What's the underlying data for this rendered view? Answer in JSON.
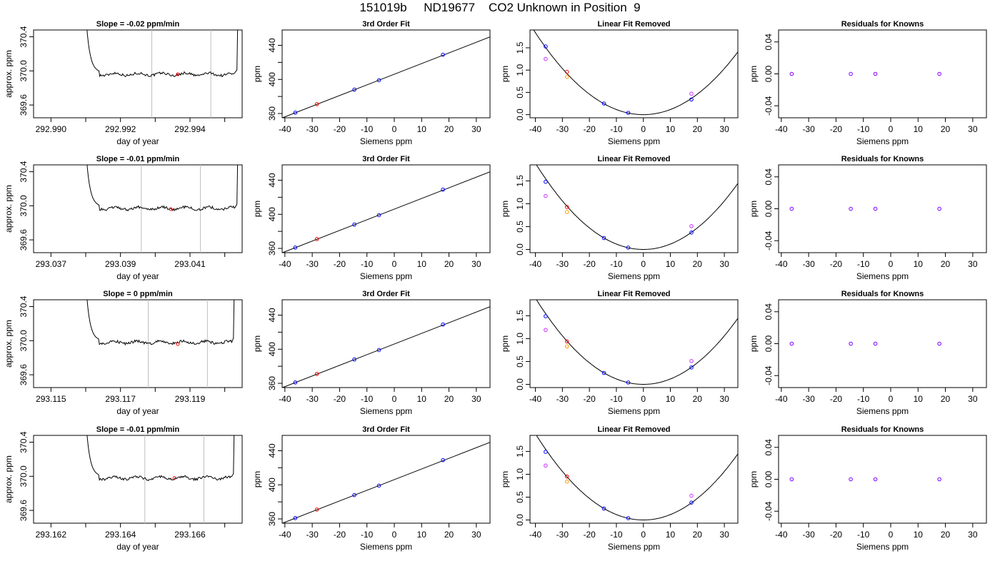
{
  "page_title": "151019b     ND19677    CO2 Unknown in Position  9",
  "colors": {
    "trace": "#000000",
    "window_lines": "#bfbfbf",
    "unknown_point": "#ff0000",
    "known_point": "#0000ff",
    "first_order_point": "#cc33ff",
    "second_order_point": "#ff9900",
    "residual_point": "#8000ff"
  },
  "chart_data": [
    {
      "type": "line",
      "row": 0,
      "title": "Slope =  -0.02  ppm/min",
      "xlabel": "day of year",
      "ylabel": "approx. ppm",
      "xlim": [
        292.9895,
        292.9955
      ],
      "ylim": [
        369.45,
        370.48
      ],
      "xticks": [
        {
          "v": 292.99,
          "l": "292.990"
        },
        {
          "v": 292.992,
          "l": "292.992"
        },
        {
          "v": 292.994,
          "l": "292.994"
        }
      ],
      "xminor": [
        292.991,
        292.993,
        292.995
      ],
      "yticks": [
        {
          "v": 369.6,
          "l": "369.6"
        },
        {
          "v": 370.0,
          "l": "370.0"
        },
        {
          "v": 370.4,
          "l": "370.4"
        }
      ],
      "level": 369.96,
      "x_start": 292.991,
      "x_end": 292.9953,
      "window": [
        292.9929,
        292.9946
      ],
      "point": [
        292.99365,
        369.96
      ]
    },
    {
      "type": "line",
      "chart": "scatter+fit",
      "row": 0,
      "title": "3rd Order Fit",
      "xlabel": "Siemens ppm",
      "ylabel": "ppm",
      "xlim": [
        -41,
        35
      ],
      "ylim": [
        355,
        458
      ],
      "xticks": [
        -40,
        -30,
        -20,
        -10,
        0,
        10,
        20,
        30
      ],
      "yticks": [
        360,
        400,
        440
      ],
      "yminor": [
        380,
        420
      ],
      "fit": {
        "slope": 1.25,
        "intercept": 406.1
      },
      "points": [
        {
          "x": -36.2,
          "y": 361
        },
        {
          "x": -28.3,
          "y": 371
        },
        {
          "x": -14.6,
          "y": 388
        },
        {
          "x": -5.6,
          "y": 399
        },
        {
          "x": 17.8,
          "y": 429
        }
      ]
    },
    {
      "type": "line",
      "chart": "scatter+curve",
      "row": 0,
      "title": "Linear Fit Removed",
      "xlabel": "Siemens ppm",
      "ylabel": "ppm",
      "xlim": [
        -42,
        35
      ],
      "ylim": [
        -0.07,
        1.9
      ],
      "xticks": [
        -40,
        -30,
        -20,
        -10,
        0,
        10,
        20,
        30
      ],
      "yticks": [
        0.0,
        0.5,
        1.0,
        1.5
      ],
      "curve": {
        "a": 0.00115,
        "b": 0.0,
        "c": 0.0
      },
      "points": [
        {
          "x": -36.2,
          "y": 1.53
        },
        {
          "x": -14.6,
          "y": 0.25
        },
        {
          "x": -5.6,
          "y": 0.04
        },
        {
          "x": 17.8,
          "y": 0.34
        }
      ],
      "unknown": {
        "x": -28.3,
        "y": 0.96
      },
      "first_order": [
        {
          "x": -36.2,
          "y": 1.25
        },
        {
          "x": 17.8,
          "y": 0.47
        }
      ],
      "second_order": [
        {
          "x": -28.3,
          "y": 0.85
        }
      ]
    },
    {
      "type": "scatter",
      "row": 0,
      "title": "Residuals for Knowns",
      "xlabel": "Siemens ppm",
      "ylabel": "ppm",
      "xlim": [
        -41,
        35
      ],
      "ylim": [
        -0.055,
        0.055
      ],
      "xticks": [
        -40,
        -30,
        -20,
        -10,
        0,
        10,
        20,
        30
      ],
      "yticks": [
        {
          "v": -0.04,
          "l": "-0.04"
        },
        {
          "v": 0.0,
          "l": "0.00"
        },
        {
          "v": 0.04,
          "l": "0.04"
        }
      ],
      "points": [
        {
          "x": -36.2,
          "y": 0
        },
        {
          "x": -14.6,
          "y": 0
        },
        {
          "x": -5.6,
          "y": 0
        },
        {
          "x": 17.8,
          "y": 0
        }
      ]
    },
    {
      "type": "line",
      "row": 1,
      "title": "Slope =  -0.01  ppm/min",
      "xlabel": "day of year",
      "ylabel": "approx. ppm",
      "xlim": [
        293.0365,
        293.0425
      ],
      "ylim": [
        369.45,
        370.48
      ],
      "xticks": [
        {
          "v": 293.037,
          "l": "293.037"
        },
        {
          "v": 293.039,
          "l": "293.039"
        },
        {
          "v": 293.041,
          "l": "293.041"
        }
      ],
      "xminor": [
        293.038,
        293.04,
        293.042
      ],
      "yticks": [
        {
          "v": 369.6,
          "l": "369.6"
        },
        {
          "v": 370.0,
          "l": "370.0"
        },
        {
          "v": 370.4,
          "l": "370.4"
        }
      ],
      "level": 369.97,
      "x_start": 293.038,
      "x_end": 293.0423,
      "window": [
        293.0396,
        293.0413
      ],
      "point": [
        293.04045,
        369.96
      ]
    },
    {
      "type": "line",
      "chart": "scatter+fit",
      "row": 1,
      "title": "3rd Order Fit",
      "xlabel": "Siemens ppm",
      "ylabel": "ppm",
      "xlim": [
        -41,
        35
      ],
      "ylim": [
        355,
        458
      ],
      "xticks": [
        -40,
        -30,
        -20,
        -10,
        0,
        10,
        20,
        30
      ],
      "yticks": [
        360,
        400,
        440
      ],
      "yminor": [
        380,
        420
      ],
      "fit": {
        "slope": 1.25,
        "intercept": 406.1
      },
      "points": [
        {
          "x": -36.2,
          "y": 361
        },
        {
          "x": -28.3,
          "y": 371
        },
        {
          "x": -14.6,
          "y": 388
        },
        {
          "x": -5.6,
          "y": 399
        },
        {
          "x": 17.8,
          "y": 429
        }
      ]
    },
    {
      "type": "line",
      "chart": "scatter+curve",
      "row": 1,
      "title": "Linear Fit Removed",
      "xlabel": "Siemens ppm",
      "ylabel": "ppm",
      "xlim": [
        -42,
        35
      ],
      "ylim": [
        -0.07,
        1.85
      ],
      "xticks": [
        -40,
        -30,
        -20,
        -10,
        0,
        10,
        20,
        30
      ],
      "yticks": [
        0.0,
        0.5,
        1.0,
        1.5
      ],
      "curve": {
        "a": 0.00118,
        "b": 0.0,
        "c": 0.0
      },
      "points": [
        {
          "x": -36.2,
          "y": 1.48
        },
        {
          "x": -14.6,
          "y": 0.25
        },
        {
          "x": -5.6,
          "y": 0.04
        },
        {
          "x": 17.8,
          "y": 0.37
        }
      ],
      "unknown": {
        "x": -28.3,
        "y": 0.93
      },
      "first_order": [
        {
          "x": -36.2,
          "y": 1.17
        },
        {
          "x": 17.8,
          "y": 0.51
        }
      ],
      "second_order": [
        {
          "x": -28.3,
          "y": 0.82
        }
      ]
    },
    {
      "type": "scatter",
      "row": 1,
      "title": "Residuals for Knowns",
      "xlabel": "Siemens ppm",
      "ylabel": "ppm",
      "xlim": [
        -41,
        35
      ],
      "ylim": [
        -0.055,
        0.055
      ],
      "xticks": [
        -40,
        -30,
        -20,
        -10,
        0,
        10,
        20,
        30
      ],
      "yticks": [
        {
          "v": -0.04,
          "l": "-0.04"
        },
        {
          "v": 0.0,
          "l": "0.00"
        },
        {
          "v": 0.04,
          "l": "0.04"
        }
      ],
      "points": [
        {
          "x": -36.2,
          "y": 0
        },
        {
          "x": -14.6,
          "y": 0
        },
        {
          "x": -5.6,
          "y": 0
        },
        {
          "x": 17.8,
          "y": 0
        }
      ]
    },
    {
      "type": "line",
      "row": 2,
      "title": "Slope =  0  ppm/min",
      "xlabel": "day of year",
      "ylabel": "approx. ppm",
      "xlim": [
        293.1145,
        293.1205
      ],
      "ylim": [
        369.45,
        370.48
      ],
      "xticks": [
        {
          "v": 293.115,
          "l": "293.115"
        },
        {
          "v": 293.117,
          "l": "293.117"
        },
        {
          "v": 293.119,
          "l": "293.119"
        }
      ],
      "xminor": [
        293.116,
        293.118,
        293.12
      ],
      "yticks": [
        {
          "v": 369.6,
          "l": "369.6"
        },
        {
          "v": 370.0,
          "l": "370.0"
        },
        {
          "v": 370.4,
          "l": "370.4"
        }
      ],
      "level": 369.98,
      "x_start": 293.116,
      "x_end": 293.1202,
      "window": [
        293.1178,
        293.1195
      ],
      "point": [
        293.11865,
        369.96
      ]
    },
    {
      "type": "line",
      "chart": "scatter+fit",
      "row": 2,
      "title": "3rd Order Fit",
      "xlabel": "Siemens ppm",
      "ylabel": "ppm",
      "xlim": [
        -41,
        35
      ],
      "ylim": [
        355,
        458
      ],
      "xticks": [
        -40,
        -30,
        -20,
        -10,
        0,
        10,
        20,
        30
      ],
      "yticks": [
        360,
        400,
        440
      ],
      "yminor": [
        380,
        420
      ],
      "fit": {
        "slope": 1.25,
        "intercept": 406.1
      },
      "points": [
        {
          "x": -36.2,
          "y": 361
        },
        {
          "x": -28.3,
          "y": 371
        },
        {
          "x": -14.6,
          "y": 388
        },
        {
          "x": -5.6,
          "y": 399
        },
        {
          "x": 17.8,
          "y": 429
        }
      ]
    },
    {
      "type": "line",
      "chart": "scatter+curve",
      "row": 2,
      "title": "Linear Fit Removed",
      "xlabel": "Siemens ppm",
      "ylabel": "ppm",
      "xlim": [
        -42,
        35
      ],
      "ylim": [
        -0.07,
        1.85
      ],
      "xticks": [
        -40,
        -30,
        -20,
        -10,
        0,
        10,
        20,
        30
      ],
      "yticks": [
        0.0,
        0.5,
        1.0,
        1.5
      ],
      "curve": {
        "a": 0.00118,
        "b": 0.0,
        "c": 0.0
      },
      "points": [
        {
          "x": -36.2,
          "y": 1.49
        },
        {
          "x": -14.6,
          "y": 0.25
        },
        {
          "x": -5.6,
          "y": 0.04
        },
        {
          "x": 17.8,
          "y": 0.37
        }
      ],
      "unknown": {
        "x": -28.3,
        "y": 0.94
      },
      "first_order": [
        {
          "x": -36.2,
          "y": 1.19
        },
        {
          "x": 17.8,
          "y": 0.51
        }
      ],
      "second_order": [
        {
          "x": -28.3,
          "y": 0.83
        }
      ]
    },
    {
      "type": "scatter",
      "row": 2,
      "title": "Residuals for Knowns",
      "xlabel": "Siemens ppm",
      "ylabel": "ppm",
      "xlim": [
        -41,
        35
      ],
      "ylim": [
        -0.055,
        0.055
      ],
      "xticks": [
        -40,
        -30,
        -20,
        -10,
        0,
        10,
        20,
        30
      ],
      "yticks": [
        {
          "v": -0.04,
          "l": "-0.04"
        },
        {
          "v": 0.0,
          "l": "0.00"
        },
        {
          "v": 0.04,
          "l": "0.04"
        }
      ],
      "points": [
        {
          "x": -36.2,
          "y": 0
        },
        {
          "x": -14.6,
          "y": 0
        },
        {
          "x": -5.6,
          "y": 0
        },
        {
          "x": 17.8,
          "y": 0
        }
      ]
    },
    {
      "type": "line",
      "row": 3,
      "title": "Slope =  -0.01  ppm/min",
      "xlabel": "day of year",
      "ylabel": "approx. ppm",
      "xlim": [
        293.1615,
        293.1675
      ],
      "ylim": [
        369.45,
        370.48
      ],
      "xticks": [
        {
          "v": 293.162,
          "l": "293.162"
        },
        {
          "v": 293.164,
          "l": "293.164"
        },
        {
          "v": 293.166,
          "l": "293.166"
        }
      ],
      "xminor": [
        293.163,
        293.165,
        293.167
      ],
      "yticks": [
        {
          "v": 369.6,
          "l": "369.6"
        },
        {
          "v": 370.0,
          "l": "370.0"
        },
        {
          "v": 370.4,
          "l": "370.4"
        }
      ],
      "level": 369.98,
      "x_start": 293.163,
      "x_end": 293.1672,
      "window": [
        293.1647,
        293.1664
      ],
      "point": [
        293.16555,
        369.98
      ]
    },
    {
      "type": "line",
      "chart": "scatter+fit",
      "row": 3,
      "title": "3rd Order Fit",
      "xlabel": "Siemens ppm",
      "ylabel": "ppm",
      "xlim": [
        -41,
        35
      ],
      "ylim": [
        355,
        458
      ],
      "xticks": [
        -40,
        -30,
        -20,
        -10,
        0,
        10,
        20,
        30
      ],
      "yticks": [
        360,
        400,
        440
      ],
      "yminor": [
        380,
        420
      ],
      "fit": {
        "slope": 1.25,
        "intercept": 406.1
      },
      "points": [
        {
          "x": -36.2,
          "y": 361
        },
        {
          "x": -28.3,
          "y": 371
        },
        {
          "x": -14.6,
          "y": 388
        },
        {
          "x": -5.6,
          "y": 399
        },
        {
          "x": 17.8,
          "y": 429
        }
      ]
    },
    {
      "type": "line",
      "chart": "scatter+curve",
      "row": 3,
      "title": "Linear Fit Removed",
      "xlabel": "Siemens ppm",
      "ylabel": "ppm",
      "xlim": [
        -42,
        35
      ],
      "ylim": [
        -0.07,
        1.85
      ],
      "xticks": [
        -40,
        -30,
        -20,
        -10,
        0,
        10,
        20,
        30
      ],
      "yticks": [
        0.0,
        0.5,
        1.0,
        1.5
      ],
      "curve": {
        "a": 0.00118,
        "b": 0.0,
        "c": 0.0
      },
      "points": [
        {
          "x": -36.2,
          "y": 1.49
        },
        {
          "x": -14.6,
          "y": 0.25
        },
        {
          "x": -5.6,
          "y": 0.04
        },
        {
          "x": 17.8,
          "y": 0.38
        }
      ],
      "unknown": {
        "x": -28.3,
        "y": 0.95
      },
      "first_order": [
        {
          "x": -36.2,
          "y": 1.19
        },
        {
          "x": 17.8,
          "y": 0.53
        }
      ],
      "second_order": [
        {
          "x": -28.3,
          "y": 0.84
        }
      ]
    },
    {
      "type": "scatter",
      "row": 3,
      "title": "Residuals for Knowns",
      "xlabel": "Siemens ppm",
      "ylabel": "ppm",
      "xlim": [
        -41,
        35
      ],
      "ylim": [
        -0.055,
        0.055
      ],
      "xticks": [
        -40,
        -30,
        -20,
        -10,
        0,
        10,
        20,
        30
      ],
      "yticks": [
        {
          "v": -0.04,
          "l": "-0.04"
        },
        {
          "v": 0.0,
          "l": "0.00"
        },
        {
          "v": 0.04,
          "l": "0.04"
        }
      ],
      "points": [
        {
          "x": -36.2,
          "y": 0
        },
        {
          "x": -14.6,
          "y": 0
        },
        {
          "x": -5.6,
          "y": 0
        },
        {
          "x": 17.8,
          "y": 0
        }
      ]
    }
  ]
}
